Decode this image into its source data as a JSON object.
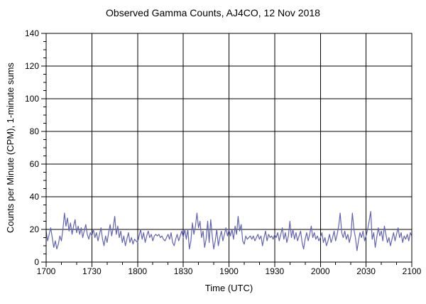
{
  "chart_data": {
    "type": "line",
    "title": "Observed Gamma Counts, AJ4CO, 12 Nov 2018",
    "xlabel": "Time (UTC)",
    "ylabel": "Counts per Minute (CPM), 1-minute sums",
    "x_tick_labels": [
      "1700",
      "1730",
      "1800",
      "1830",
      "1900",
      "1930",
      "2000",
      "2030",
      "2100"
    ],
    "x_major_interval_minutes": 30,
    "x_minor_interval_minutes": 10,
    "xlim_minutes": [
      0,
      240
    ],
    "y_major_ticks": [
      0,
      20,
      40,
      60,
      80,
      100,
      120,
      140
    ],
    "y_minor_interval": 5,
    "ylim": [
      0,
      140
    ],
    "grid": "major-both",
    "legend": "none",
    "colors": {
      "series_line": "#6363b4",
      "axis": "#000000",
      "grid": "#000000",
      "background": "#ffffff"
    },
    "series": [
      {
        "name": "gamma-counts-1min-sums",
        "start_utc": "1700",
        "end_utc": "2100",
        "step_minutes": 1,
        "values": [
          19,
          13,
          17,
          21,
          15,
          9,
          13,
          8,
          11,
          16,
          13,
          20,
          30,
          22,
          27,
          19,
          24,
          17,
          22,
          26,
          18,
          22,
          17,
          21,
          15,
          19,
          23,
          17,
          14,
          18,
          16,
          20,
          15,
          18,
          13,
          17,
          21,
          14,
          10,
          16,
          12,
          18,
          23,
          16,
          21,
          28,
          17,
          22,
          15,
          19,
          12,
          16,
          10,
          14,
          18,
          12,
          15,
          11,
          14,
          13,
          12,
          16,
          20,
          14,
          18,
          12,
          16,
          19,
          15,
          17,
          13,
          16,
          17,
          16,
          17,
          15,
          16,
          14,
          13,
          15,
          17,
          14,
          18,
          12,
          10,
          14,
          17,
          13,
          16,
          19,
          15,
          20,
          14,
          20,
          8,
          13,
          24,
          17,
          22,
          30,
          21,
          25,
          15,
          19,
          9,
          14,
          25,
          12,
          26,
          16,
          8,
          13,
          20,
          10,
          15,
          19,
          13,
          17,
          21,
          16,
          20,
          16,
          20,
          14,
          22,
          17,
          28,
          19,
          23,
          13,
          11,
          16,
          14,
          15,
          16,
          14,
          16,
          13,
          15,
          17,
          14,
          16,
          10,
          15,
          19,
          13,
          17,
          15,
          16,
          14,
          17,
          15,
          18,
          13,
          17,
          21,
          14,
          18,
          12,
          16,
          25,
          15,
          20,
          14,
          18,
          13,
          16,
          19,
          12,
          8,
          14,
          18,
          13,
          17,
          22,
          15,
          18,
          14,
          16,
          13,
          15,
          18,
          12,
          15,
          10,
          13,
          17,
          12,
          15,
          19,
          13,
          17,
          22,
          30,
          18,
          15,
          19,
          14,
          17,
          12,
          16,
          30,
          20,
          15,
          7,
          13,
          18,
          15,
          19,
          13,
          16,
          20,
          25,
          31,
          14,
          18,
          9,
          15,
          21,
          16,
          19,
          13,
          22,
          17,
          12,
          15,
          10,
          14,
          18,
          13,
          17,
          21,
          15,
          18,
          12,
          16,
          14,
          17,
          13,
          18,
          16
        ]
      }
    ]
  }
}
